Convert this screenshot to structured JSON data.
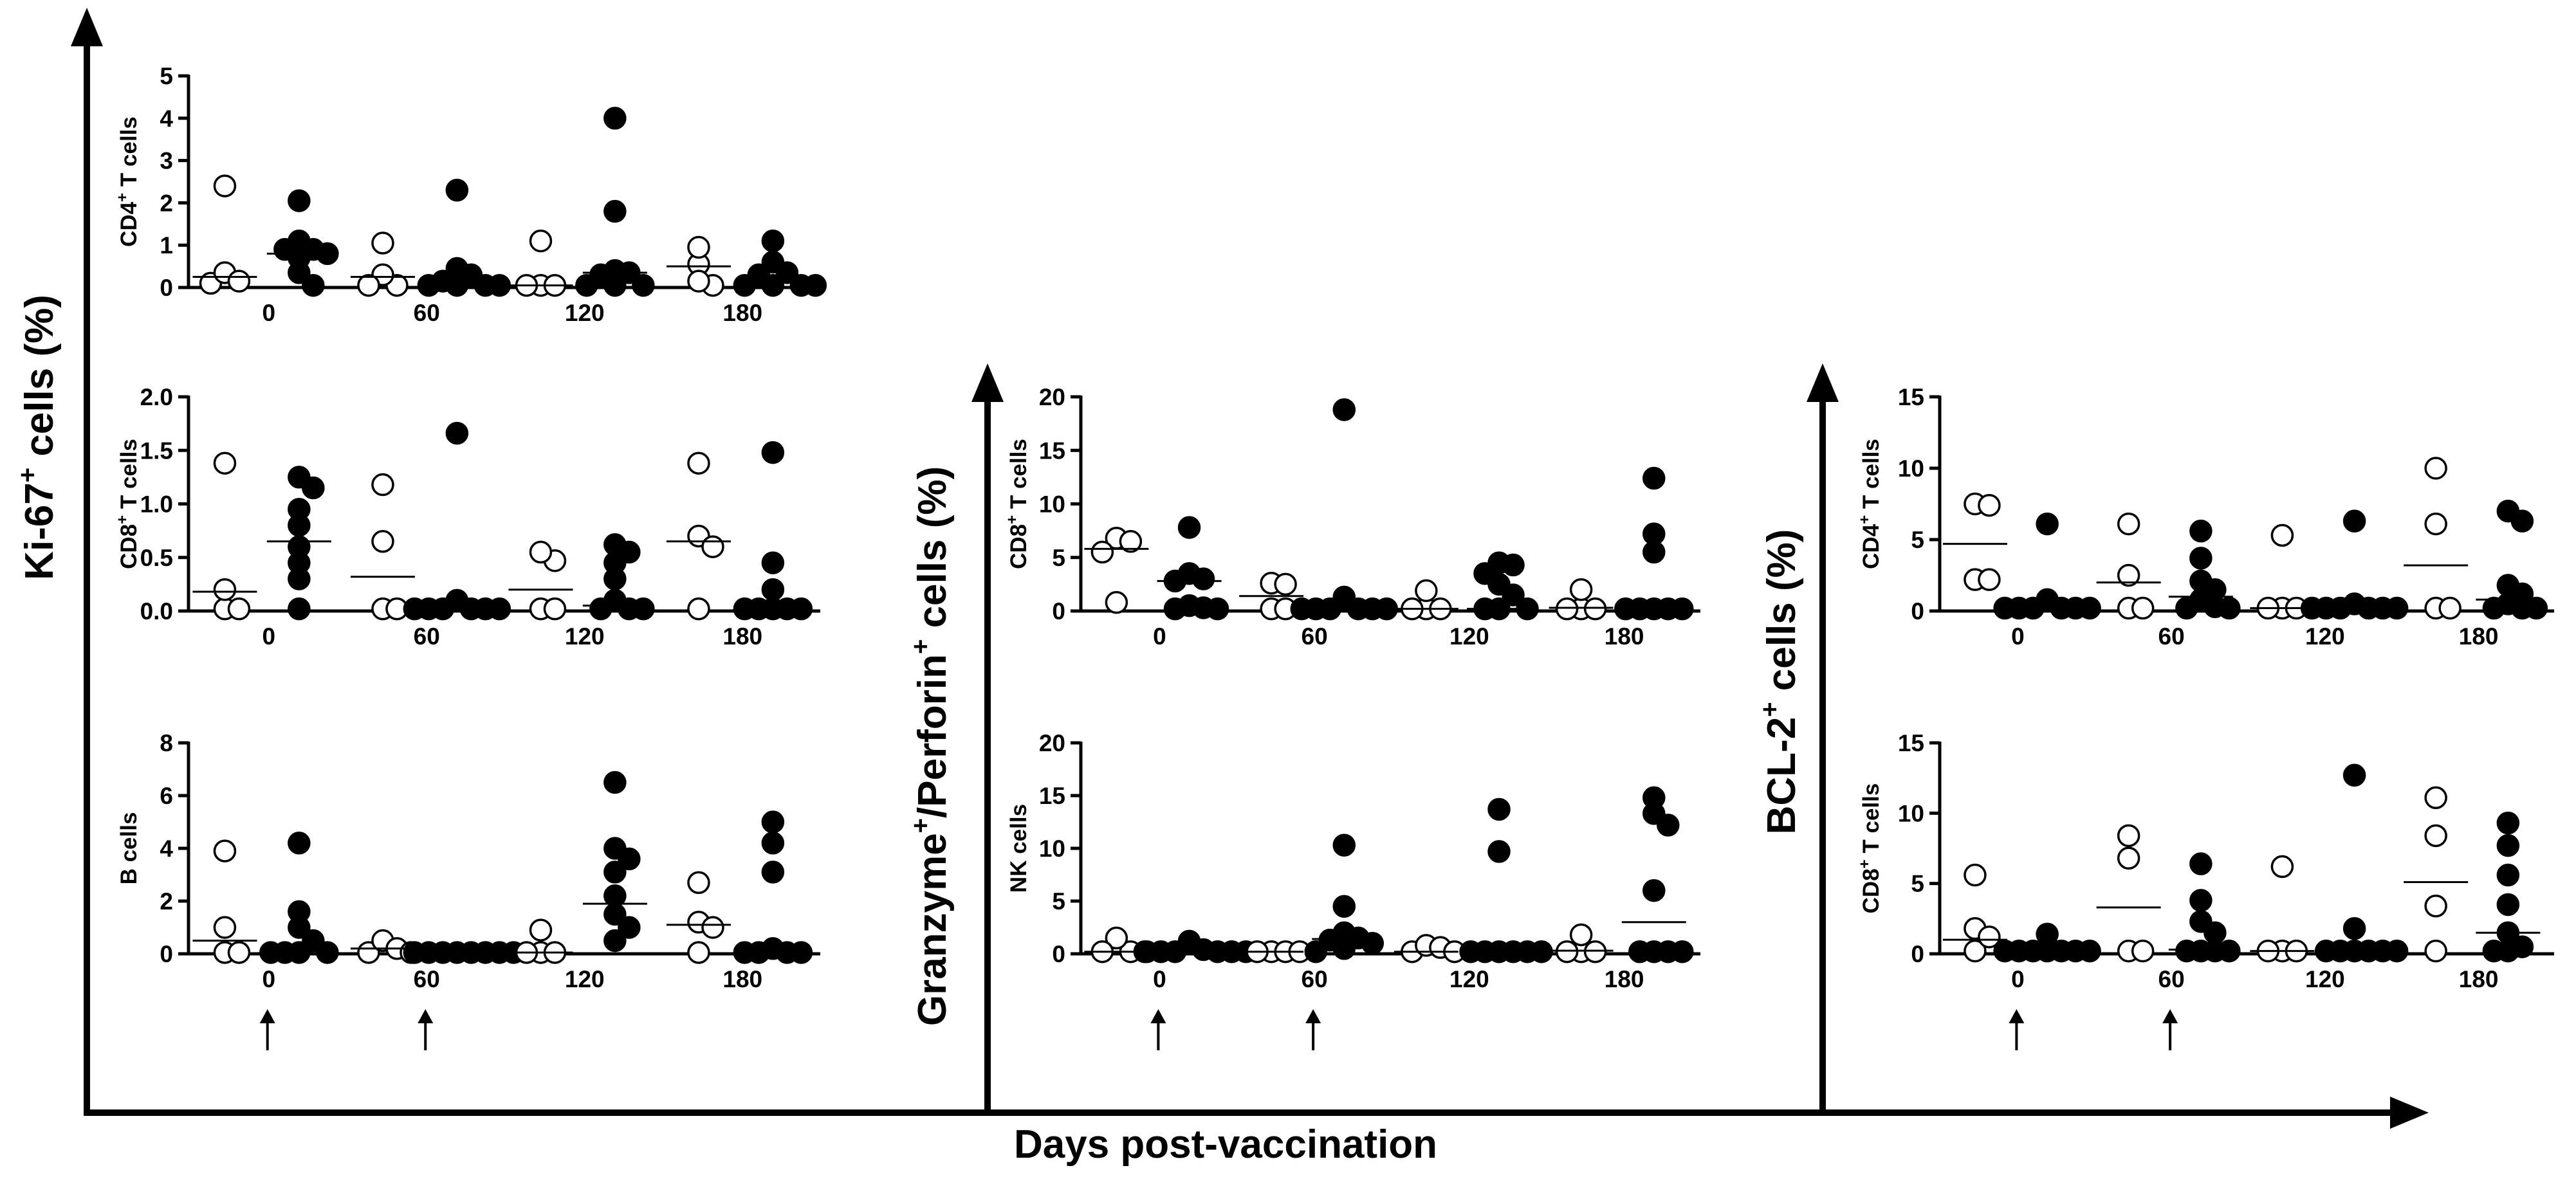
{
  "figure": {
    "xlabel": "Days post-vaccination",
    "groups": [
      {
        "id": "ki67",
        "label_main": "Ki-67",
        "label_sup": "+",
        "label_tail": " cells (%)"
      },
      {
        "id": "gzm",
        "label_main": "Granzyme",
        "label_sup": "+",
        "label_mid": "/Perforin",
        "label_sup2": "+",
        "label_tail": " cells (%)"
      },
      {
        "id": "bcl2",
        "label_main": "BCL-2",
        "label_sup": "+",
        "label_tail": " cells (%)"
      }
    ],
    "vaccination_days": [
      0,
      60
    ],
    "marker_legend": {
      "open": "open circles",
      "filled": "filled circles"
    }
  },
  "chart_data": [
    {
      "id": "ki67-cd4",
      "group": "ki67",
      "type": "scatter",
      "ylabel_main": "CD4",
      "ylabel_sup": "+",
      "ylabel_tail": " T cells",
      "ylim": [
        0,
        5
      ],
      "yticks": [
        "0",
        "1",
        "2",
        "3",
        "4",
        "5"
      ],
      "categories": [
        "0",
        "60",
        "120",
        "180"
      ],
      "series": [
        {
          "name": "open",
          "values": [
            [
              0.1,
              0.35,
              0.15,
              2.4
            ],
            [
              0.05,
              0.3,
              0.05,
              1.05
            ],
            [
              0.05,
              0.05,
              0.05,
              1.1
            ],
            [
              0.05,
              0.55,
              0.15,
              0.95
            ]
          ],
          "medians": [
            0.25,
            0.25,
            0.05,
            0.5
          ]
        },
        {
          "name": "filled",
          "values": [
            [
              0.8,
              0.9,
              0.7,
              1.1,
              0.35,
              0.9,
              2.05,
              0.05
            ],
            [
              0.05,
              0.05,
              0.15,
              0.05,
              0.05,
              0.3,
              0.45,
              2.3
            ],
            [
              0.05,
              0.05,
              0.3,
              0.35,
              0.4,
              0.05,
              1.8,
              4.0
            ],
            [
              0.05,
              0.05,
              0.05,
              0.3,
              0.6,
              0.05,
              0.35,
              1.1
            ]
          ],
          "medians": [
            0.8,
            0.1,
            0.35,
            0.2
          ]
        }
      ]
    },
    {
      "id": "ki67-cd8",
      "group": "ki67",
      "type": "scatter",
      "ylabel_main": "CD8",
      "ylabel_sup": "+",
      "ylabel_tail": " T cells",
      "ylim": [
        0,
        2
      ],
      "yticks": [
        "0.0",
        "0.5",
        "1.0",
        "1.5",
        "2.0"
      ],
      "categories": [
        "0",
        "60",
        "120",
        "180"
      ],
      "series": [
        {
          "name": "open",
          "values": [
            [
              0.02,
              1.38,
              0.02,
              0.2
            ],
            [
              0.02,
              1.18,
              0.65,
              0.02
            ],
            [
              0.02,
              0.47,
              0.55,
              0.02
            ],
            [
              0.7,
              1.38,
              0.6,
              0.02
            ]
          ],
          "medians": [
            0.18,
            0.32,
            0.2,
            0.65
          ]
        },
        {
          "name": "filled",
          "values": [
            [
              1.25,
              1.15,
              0.95,
              0.8,
              0.6,
              0.45,
              0.3,
              0.02
            ],
            [
              0.02,
              0.02,
              0.02,
              0.1,
              0.02,
              0.02,
              0.02,
              1.66
            ],
            [
              0.02,
              0.02,
              0.02,
              0.62,
              0.55,
              0.45,
              0.3,
              0.1
            ],
            [
              0.02,
              0.02,
              0.02,
              0.02,
              0.2,
              0.45,
              0.02,
              1.48
            ]
          ],
          "medians": [
            0.65,
            0.02,
            0.05,
            0.02
          ]
        }
      ]
    },
    {
      "id": "ki67-b",
      "group": "ki67",
      "type": "scatter",
      "ylabel_main": "B cells",
      "ylabel_sup": "",
      "ylabel_tail": "",
      "ylim": [
        0,
        8
      ],
      "yticks": [
        "0",
        "2",
        "4",
        "6",
        "8"
      ],
      "categories": [
        "0",
        "60",
        "120",
        "180"
      ],
      "series": [
        {
          "name": "open",
          "values": [
            [
              0.05,
              0.05,
              1.0,
              3.9
            ],
            [
              0.05,
              0.5,
              0.2,
              0.05
            ],
            [
              0.05,
              0.05,
              0.05,
              0.9
            ],
            [
              0.05,
              1.2,
              1.0,
              2.7
            ]
          ],
          "medians": [
            0.5,
            0.2,
            0.05,
            1.1
          ]
        },
        {
          "name": "filled",
          "values": [
            [
              0.05,
              0.05,
              0.05,
              0.05,
              0.5,
              1.0,
              1.6,
              4.2
            ],
            [
              0.05,
              0.05,
              0.05,
              0.05,
              0.05,
              0.05,
              0.05,
              0.05
            ],
            [
              0.5,
              1.5,
              2.2,
              3.1,
              3.6,
              4.0,
              6.5,
              1.0
            ],
            [
              0.05,
              0.05,
              0.05,
              0.05,
              0.2,
              3.1,
              4.2,
              5.0
            ]
          ],
          "medians": [
            0.1,
            0.05,
            1.9,
            0.1
          ]
        }
      ]
    },
    {
      "id": "gzm-cd8",
      "group": "gzm",
      "type": "scatter",
      "ylabel_main": "CD8",
      "ylabel_sup": "+",
      "ylabel_tail": " T cells",
      "ylim": [
        0,
        20
      ],
      "yticks": [
        "0",
        "5",
        "10",
        "15",
        "20"
      ],
      "categories": [
        "0",
        "60",
        "120",
        "180"
      ],
      "series": [
        {
          "name": "open",
          "values": [
            [
              6.8,
              5.5,
              6.5,
              0.8
            ],
            [
              0.2,
              2.6,
              2.5,
              0.2
            ],
            [
              0.2,
              0.2,
              0.2,
              1.9
            ],
            [
              0.2,
              0.2,
              2.0,
              0.2
            ]
          ],
          "medians": [
            5.8,
            1.4,
            0.2,
            0.3
          ]
        },
        {
          "name": "filled",
          "values": [
            [
              0.2,
              0.2,
              0.3,
              3.5,
              3.0,
              2.8,
              7.8,
              0.5
            ],
            [
              0.2,
              0.2,
              0.2,
              0.2,
              1.3,
              0.2,
              0.2,
              18.8
            ],
            [
              0.2,
              0.2,
              0.2,
              1.5,
              2.5,
              3.5,
              4.5,
              4.3
            ],
            [
              0.2,
              0.2,
              0.2,
              0.2,
              5.5,
              7.2,
              0.2,
              12.4
            ]
          ],
          "medians": [
            2.8,
            0.2,
            0.2,
            0.2
          ]
        }
      ]
    },
    {
      "id": "gzm-nk",
      "group": "gzm",
      "type": "scatter",
      "ylabel_main": "NK cells",
      "ylabel_sup": "",
      "ylabel_tail": "",
      "ylim": [
        0,
        20
      ],
      "yticks": [
        "0",
        "5",
        "10",
        "15",
        "20"
      ],
      "categories": [
        "0",
        "60",
        "120",
        "180"
      ],
      "series": [
        {
          "name": "open",
          "values": [
            [
              0.2,
              1.5,
              0.2,
              0.2
            ],
            [
              0.2,
              0.2,
              0.2,
              0.2
            ],
            [
              0.2,
              0.8,
              0.6,
              0.2
            ],
            [
              0.2,
              0.2,
              1.8,
              0.2
            ]
          ],
          "medians": [
            0.2,
            0.2,
            0.2,
            0.3
          ]
        },
        {
          "name": "filled",
          "values": [
            [
              0.2,
              0.2,
              1.2,
              0.2,
              0.4,
              0.2,
              0.2,
              0.2
            ],
            [
              0.2,
              0.5,
              1.0,
              1.5,
              1.3,
              2.0,
              4.5,
              10.3
            ],
            [
              0.2,
              0.2,
              0.2,
              0.2,
              0.2,
              0.2,
              9.7,
              13.7
            ],
            [
              0.2,
              0.2,
              0.2,
              0.2,
              6.0,
              13.3,
              14.8,
              12.2
            ]
          ],
          "medians": [
            0.2,
            1.4,
            0.2,
            3.0
          ]
        }
      ]
    },
    {
      "id": "bcl2-cd4",
      "group": "bcl2",
      "type": "scatter",
      "ylabel_main": "CD4",
      "ylabel_sup": "+",
      "ylabel_tail": " T cells",
      "ylim": [
        0,
        15
      ],
      "yticks": [
        "0",
        "5",
        "10",
        "15"
      ],
      "categories": [
        "0",
        "60",
        "120",
        "180"
      ],
      "series": [
        {
          "name": "open",
          "values": [
            [
              2.2,
              7.5,
              7.4,
              2.2
            ],
            [
              0.2,
              6.1,
              2.5,
              0.2
            ],
            [
              0.2,
              0.2,
              5.3,
              0.2
            ],
            [
              0.2,
              10.0,
              6.1,
              0.2
            ]
          ],
          "medians": [
            4.7,
            2.0,
            0.2,
            3.2
          ]
        },
        {
          "name": "filled",
          "values": [
            [
              0.2,
              0.2,
              0.8,
              0.2,
              0.2,
              0.2,
              6.1,
              0.2
            ],
            [
              0.2,
              0.2,
              0.8,
              1.5,
              2.1,
              3.7,
              5.6,
              0.3
            ],
            [
              0.2,
              0.2,
              0.2,
              0.5,
              0.2,
              0.2,
              6.3,
              0.2
            ],
            [
              0.2,
              0.2,
              0.5,
              1.2,
              1.8,
              6.3,
              7.0,
              0.2
            ]
          ],
          "medians": [
            0.2,
            1.0,
            0.2,
            0.8
          ]
        }
      ]
    },
    {
      "id": "bcl2-cd8",
      "group": "bcl2",
      "type": "scatter",
      "ylabel_main": "CD8",
      "ylabel_sup": "+",
      "ylabel_tail": " T cells",
      "ylim": [
        0,
        15
      ],
      "yticks": [
        "0",
        "5",
        "10",
        "15"
      ],
      "categories": [
        "0",
        "60",
        "120",
        "180"
      ],
      "series": [
        {
          "name": "open",
          "values": [
            [
              0.2,
              1.8,
              1.2,
              5.6
            ],
            [
              0.2,
              8.4,
              6.8,
              0.2
            ],
            [
              0.2,
              0.2,
              6.2,
              0.2
            ],
            [
              0.2,
              11.1,
              8.4,
              3.4
            ]
          ],
          "medians": [
            1.0,
            3.3,
            0.2,
            5.1
          ]
        },
        {
          "name": "filled",
          "values": [
            [
              0.2,
              0.2,
              0.2,
              1.4,
              0.2,
              0.2,
              0.2,
              0.2
            ],
            [
              0.2,
              0.2,
              1.5,
              2.3,
              3.8,
              6.4,
              0.2,
              0.2
            ],
            [
              0.2,
              0.2,
              0.2,
              0.2,
              1.8,
              12.7,
              0.2,
              0.2
            ],
            [
              0.2,
              0.2,
              0.5,
              1.5,
              3.5,
              5.6,
              7.7,
              9.3
            ]
          ],
          "medians": [
            0.2,
            0.3,
            0.2,
            1.5
          ]
        }
      ]
    }
  ]
}
